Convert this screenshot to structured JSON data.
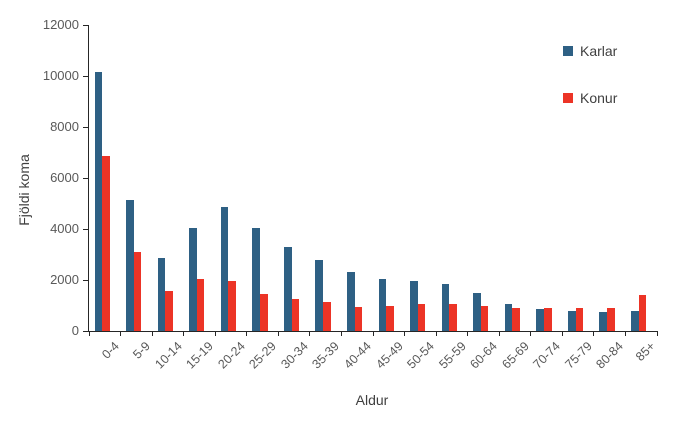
{
  "chart_data": {
    "type": "bar",
    "title": "",
    "xlabel": "Aldur",
    "ylabel": "Fjöldi koma",
    "categories": [
      "0-4",
      "5-9",
      "10-14",
      "15-19",
      "20-24",
      "25-29",
      "30-34",
      "35-39",
      "40-44",
      "45-49",
      "50-54",
      "55-59",
      "60-64",
      "65-69",
      "70-74",
      "75-79",
      "80-84",
      "85+"
    ],
    "series": [
      {
        "name": "Karlar",
        "color": "#2E6084",
        "values": [
          10150,
          5150,
          2850,
          4050,
          4850,
          4050,
          3300,
          2800,
          2300,
          2050,
          1950,
          1850,
          1500,
          1050,
          850,
          800,
          750,
          800
        ]
      },
      {
        "name": "Konur",
        "color": "#EC3426",
        "values": [
          6850,
          3100,
          1550,
          2050,
          1950,
          1450,
          1250,
          1150,
          950,
          1000,
          1050,
          1050,
          1000,
          900,
          900,
          900,
          900,
          1400
        ]
      }
    ],
    "ylim": [
      0,
      12000
    ],
    "yticks": [
      0,
      2000,
      4000,
      6000,
      8000,
      10000,
      12000
    ],
    "grid": false,
    "legend_position": "top-right"
  }
}
